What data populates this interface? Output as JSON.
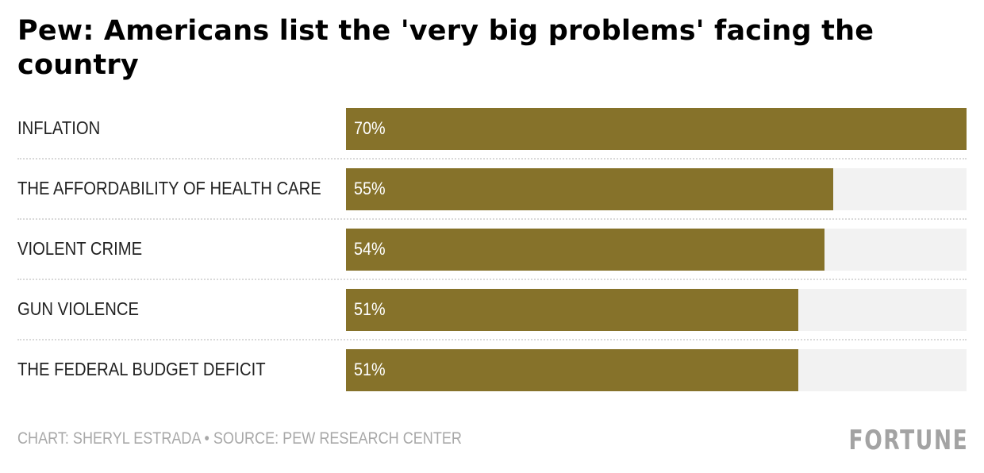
{
  "chart_data": {
    "type": "bar",
    "orientation": "horizontal",
    "title": "Pew: Americans list the 'very big problems' facing the country",
    "categories": [
      "INFLATION",
      "THE AFFORDABILITY OF HEALTH CARE",
      "VIOLENT CRIME",
      "GUN VIOLENCE",
      "THE FEDERAL BUDGET DEFICIT"
    ],
    "values": [
      70,
      55,
      54,
      51,
      51
    ],
    "value_labels": [
      "70%",
      "55%",
      "54%",
      "51%",
      "51%"
    ],
    "unit": "%",
    "xlim": [
      0,
      70
    ],
    "xlabel": "",
    "ylabel": "",
    "grid": false,
    "legend": "none",
    "colors": {
      "bar": "#86722a",
      "track": "#f2f2f2"
    }
  },
  "footer": {
    "credit": "CHART: SHERYL ESTRADA • SOURCE: PEW RESEARCH CENTER",
    "logo": "FORTUNE"
  }
}
